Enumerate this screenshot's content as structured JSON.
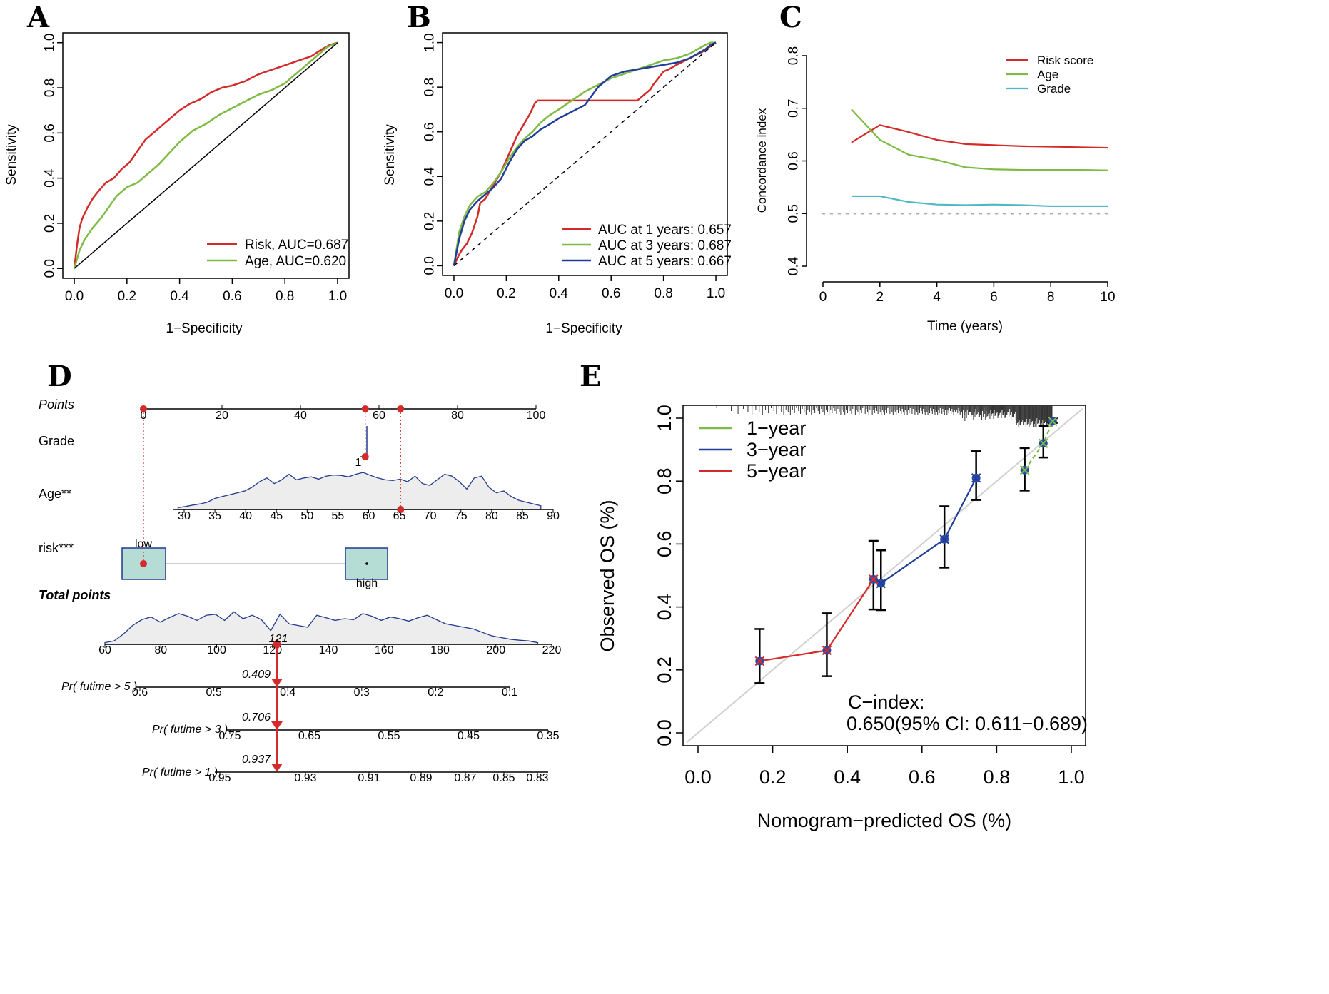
{
  "panels": {
    "A": "A",
    "B": "B",
    "C": "C",
    "D": "D",
    "E": "E"
  },
  "colors": {
    "red": "#d42a2a",
    "green": "#7dbb42",
    "blue": "#1f3d99",
    "cyan": "#4fb8c4",
    "navy": "#233a8f",
    "grey": "#bfbfbf",
    "teal": "#b5ddd6"
  },
  "chart_data": [
    {
      "id": "A",
      "type": "line",
      "title": "",
      "xlabel": "1−Specificity",
      "ylabel": "Sensitivity",
      "xlim": [
        0,
        1
      ],
      "ylim": [
        0,
        1
      ],
      "xticks": [
        "0.0",
        "0.2",
        "0.4",
        "0.6",
        "0.8",
        "1.0"
      ],
      "yticks": [
        "0.0",
        "0.2",
        "0.4",
        "0.6",
        "0.8",
        "1.0"
      ],
      "series": [
        {
          "name": "Risk",
          "label": "Risk, AUC=0.687",
          "auc": 0.687,
          "color": "red",
          "x": [
            0,
            0.01,
            0.02,
            0.03,
            0.05,
            0.07,
            0.09,
            0.12,
            0.15,
            0.18,
            0.21,
            0.24,
            0.27,
            0.3,
            0.33,
            0.36,
            0.4,
            0.44,
            0.48,
            0.52,
            0.56,
            0.6,
            0.65,
            0.7,
            0.75,
            0.8,
            0.85,
            0.9,
            0.94,
            0.97,
            1
          ],
          "y": [
            0,
            0.1,
            0.18,
            0.22,
            0.27,
            0.31,
            0.34,
            0.38,
            0.4,
            0.44,
            0.47,
            0.52,
            0.57,
            0.6,
            0.63,
            0.66,
            0.7,
            0.73,
            0.75,
            0.78,
            0.8,
            0.81,
            0.83,
            0.86,
            0.88,
            0.9,
            0.92,
            0.94,
            0.97,
            0.99,
            1
          ]
        },
        {
          "name": "Age",
          "label": "Age, AUC=0.620",
          "auc": 0.62,
          "color": "green",
          "x": [
            0,
            0.02,
            0.04,
            0.07,
            0.1,
            0.13,
            0.16,
            0.2,
            0.24,
            0.28,
            0.32,
            0.36,
            0.4,
            0.45,
            0.5,
            0.55,
            0.6,
            0.65,
            0.7,
            0.75,
            0.8,
            0.84,
            0.88,
            0.92,
            0.96,
            1
          ],
          "y": [
            0,
            0.08,
            0.13,
            0.18,
            0.22,
            0.27,
            0.32,
            0.36,
            0.38,
            0.42,
            0.46,
            0.51,
            0.56,
            0.61,
            0.64,
            0.68,
            0.71,
            0.74,
            0.77,
            0.79,
            0.82,
            0.86,
            0.9,
            0.94,
            0.98,
            1
          ]
        },
        {
          "name": "Reference",
          "label": "",
          "color": "black",
          "x": [
            0,
            1
          ],
          "y": [
            0,
            1
          ]
        }
      ]
    },
    {
      "id": "B",
      "type": "line",
      "title": "",
      "xlabel": "1−Specificity",
      "ylabel": "Sensitivity",
      "xlim": [
        0,
        1
      ],
      "ylim": [
        0,
        1
      ],
      "xticks": [
        "0.0",
        "0.2",
        "0.4",
        "0.6",
        "0.8",
        "1.0"
      ],
      "yticks": [
        "0.0",
        "0.2",
        "0.4",
        "0.6",
        "0.8",
        "1.0"
      ],
      "series": [
        {
          "name": "1 year",
          "label": "AUC at 1 years: 0.657",
          "auc": 0.657,
          "color": "red",
          "x": [
            0,
            0.02,
            0.03,
            0.05,
            0.07,
            0.09,
            0.1,
            0.12,
            0.15,
            0.18,
            0.21,
            0.24,
            0.27,
            0.29,
            0.31,
            0.32,
            0.5,
            0.7,
            0.75,
            0.76,
            0.78,
            0.8,
            0.82,
            0.85,
            0.9,
            0.95,
            1
          ],
          "y": [
            0,
            0.05,
            0.07,
            0.1,
            0.15,
            0.22,
            0.28,
            0.3,
            0.36,
            0.42,
            0.5,
            0.58,
            0.64,
            0.68,
            0.73,
            0.74,
            0.74,
            0.74,
            0.79,
            0.81,
            0.84,
            0.87,
            0.88,
            0.9,
            0.93,
            0.96,
            1
          ]
        },
        {
          "name": "3 years",
          "label": "AUC at 3 years: 0.687",
          "auc": 0.687,
          "color": "green",
          "x": [
            0,
            0.02,
            0.04,
            0.06,
            0.09,
            0.12,
            0.15,
            0.18,
            0.21,
            0.24,
            0.27,
            0.3,
            0.33,
            0.36,
            0.4,
            0.45,
            0.5,
            0.55,
            0.6,
            0.65,
            0.7,
            0.75,
            0.8,
            0.85,
            0.9,
            0.93,
            0.96,
            0.98,
            1
          ],
          "y": [
            0,
            0.15,
            0.22,
            0.27,
            0.31,
            0.33,
            0.37,
            0.42,
            0.48,
            0.53,
            0.57,
            0.6,
            0.64,
            0.67,
            0.7,
            0.74,
            0.78,
            0.81,
            0.84,
            0.86,
            0.88,
            0.9,
            0.92,
            0.93,
            0.95,
            0.97,
            0.99,
            1,
            1
          ]
        },
        {
          "name": "5 years",
          "label": "AUC at 5 years: 0.667",
          "auc": 0.667,
          "color": "blue",
          "x": [
            0,
            0.02,
            0.04,
            0.06,
            0.09,
            0.12,
            0.15,
            0.18,
            0.21,
            0.24,
            0.27,
            0.3,
            0.33,
            0.36,
            0.4,
            0.45,
            0.5,
            0.55,
            0.6,
            0.65,
            0.7,
            0.75,
            0.8,
            0.85,
            0.9,
            0.93,
            0.96,
            0.98,
            1
          ],
          "y": [
            0,
            0.12,
            0.2,
            0.25,
            0.29,
            0.32,
            0.35,
            0.39,
            0.46,
            0.52,
            0.56,
            0.58,
            0.61,
            0.63,
            0.66,
            0.69,
            0.72,
            0.8,
            0.85,
            0.87,
            0.88,
            0.89,
            0.9,
            0.91,
            0.93,
            0.95,
            0.97,
            0.99,
            1
          ]
        },
        {
          "name": "Reference",
          "label": "",
          "color": "black",
          "dashed": true,
          "x": [
            0,
            1
          ],
          "y": [
            0,
            1
          ]
        }
      ]
    },
    {
      "id": "C",
      "type": "line",
      "title": "",
      "xlabel": "Time (years)",
      "ylabel": "Concordance index",
      "xlim": [
        0,
        10
      ],
      "ylim": [
        0.4,
        0.8
      ],
      "xticks": [
        "0",
        "2",
        "4",
        "6",
        "8",
        "10"
      ],
      "yticks": [
        "0.4",
        "0.5",
        "0.6",
        "0.7",
        "0.8"
      ],
      "reference_line": 0.5,
      "series": [
        {
          "name": "Risk score",
          "color": "red",
          "x": [
            1,
            2,
            3,
            4,
            5,
            6,
            7,
            8,
            9,
            10
          ],
          "y": [
            0.635,
            0.668,
            0.655,
            0.64,
            0.632,
            0.63,
            0.628,
            0.627,
            0.626,
            0.625
          ]
        },
        {
          "name": "Age",
          "color": "green",
          "x": [
            1,
            2,
            3,
            4,
            5,
            6,
            7,
            8,
            9,
            10
          ],
          "y": [
            0.698,
            0.64,
            0.612,
            0.602,
            0.588,
            0.584,
            0.583,
            0.583,
            0.583,
            0.582
          ]
        },
        {
          "name": "Grade",
          "color": "cyan",
          "x": [
            1,
            2,
            3,
            4,
            5,
            6,
            7,
            8,
            9,
            10
          ],
          "y": [
            0.533,
            0.533,
            0.522,
            0.517,
            0.516,
            0.517,
            0.516,
            0.514,
            0.514,
            0.514
          ]
        }
      ]
    },
    {
      "id": "D",
      "type": "nomogram",
      "rows": {
        "points": "Points",
        "grade": "Grade",
        "age": "Age**",
        "risk": "risk***",
        "total": "Total points",
        "pr5": "Pr( futime > 5 )",
        "pr3": "Pr( futime > 3 )",
        "pr1": "Pr( futime > 1 )"
      },
      "points_ticks": [
        "0",
        "20",
        "40",
        "60",
        "80",
        "100"
      ],
      "grade_tick": "1",
      "age_ticks": [
        "30",
        "35",
        "40",
        "45",
        "50",
        "55",
        "60",
        "65",
        "70",
        "75",
        "80",
        "85",
        "90"
      ],
      "risk_levels": [
        "low",
        "high"
      ],
      "total_ticks": [
        "60",
        "80",
        "100",
        "120",
        "140",
        "160",
        "180",
        "200",
        "220"
      ],
      "pr5_ticks": [
        "0.6",
        "0.5",
        "0.4",
        "0.3",
        "0.2",
        "0.1"
      ],
      "pr3_ticks": [
        "0.75",
        "0.65",
        "0.55",
        "0.45",
        "0.35"
      ],
      "pr1_ticks": [
        "0.95",
        "0.93",
        "0.91",
        "0.89",
        "0.87",
        "0.85",
        "0.83"
      ],
      "selected": {
        "grade_points": 56.5,
        "age_points": 65.5,
        "risk_points": 0,
        "total_points": "121",
        "pr5": "0.409",
        "pr3": "0.706",
        "pr1": "0.937"
      },
      "age_density": [
        0.05,
        0.08,
        0.12,
        0.15,
        0.2,
        0.3,
        0.35,
        0.4,
        0.45,
        0.5,
        0.6,
        0.75,
        0.85,
        0.7,
        0.8,
        0.95,
        0.8,
        0.85,
        0.88,
        0.82,
        0.9,
        0.93,
        0.92,
        0.88,
        0.95,
        1.0,
        0.92,
        0.85,
        0.8,
        0.78,
        0.82,
        0.75,
        0.9,
        0.7,
        0.65,
        0.8,
        0.95,
        0.9,
        0.75,
        0.55,
        0.85,
        0.9,
        0.6,
        0.45,
        0.5,
        0.35,
        0.25,
        0.2,
        0.15,
        0.1
      ],
      "total_density": [
        0.05,
        0.1,
        0.3,
        0.55,
        0.72,
        0.8,
        0.65,
        0.78,
        0.9,
        0.82,
        0.7,
        0.85,
        0.88,
        0.7,
        0.95,
        0.75,
        0.85,
        0.72,
        0.4,
        0.88,
        0.6,
        0.55,
        0.5,
        0.85,
        0.78,
        0.7,
        0.75,
        0.72,
        0.9,
        0.82,
        0.7,
        0.8,
        0.75,
        0.68,
        0.78,
        0.85,
        0.72,
        0.6,
        0.55,
        0.5,
        0.45,
        0.35,
        0.25,
        0.2,
        0.15,
        0.12,
        0.1,
        0.05
      ]
    },
    {
      "id": "E",
      "type": "calibration",
      "xlabel": "Nomogram−predicted OS (%)",
      "ylabel": "Observed OS (%)",
      "xlim": [
        0,
        1
      ],
      "ylim": [
        0,
        1
      ],
      "xticks": [
        "0.0",
        "0.2",
        "0.4",
        "0.6",
        "0.8",
        "1.0"
      ],
      "yticks": [
        "0.0",
        "0.2",
        "0.4",
        "0.6",
        "0.8",
        "1.0"
      ],
      "cindex_label": "C−index:",
      "cindex_value": "0.650(95% CI: 0.611−0.689)",
      "series": [
        {
          "name": "1−year",
          "color": "green",
          "x": [
            0.875,
            0.925,
            0.95
          ],
          "y": [
            0.835,
            0.92,
            0.99
          ],
          "lo": [
            0.77,
            0.875,
            0.985
          ],
          "hi": [
            0.905,
            0.975,
            1.0
          ]
        },
        {
          "name": "3−year",
          "color": "blue",
          "x": [
            0.49,
            0.66,
            0.745
          ],
          "y": [
            0.475,
            0.615,
            0.81
          ],
          "lo": [
            0.39,
            0.525,
            0.74
          ],
          "hi": [
            0.58,
            0.72,
            0.895
          ]
        },
        {
          "name": "5−year",
          "color": "red",
          "x": [
            0.165,
            0.345,
            0.47
          ],
          "y": [
            0.228,
            0.262,
            0.488
          ],
          "lo": [
            0.158,
            0.18,
            0.392
          ],
          "hi": [
            0.33,
            0.38,
            0.61
          ]
        }
      ]
    }
  ]
}
